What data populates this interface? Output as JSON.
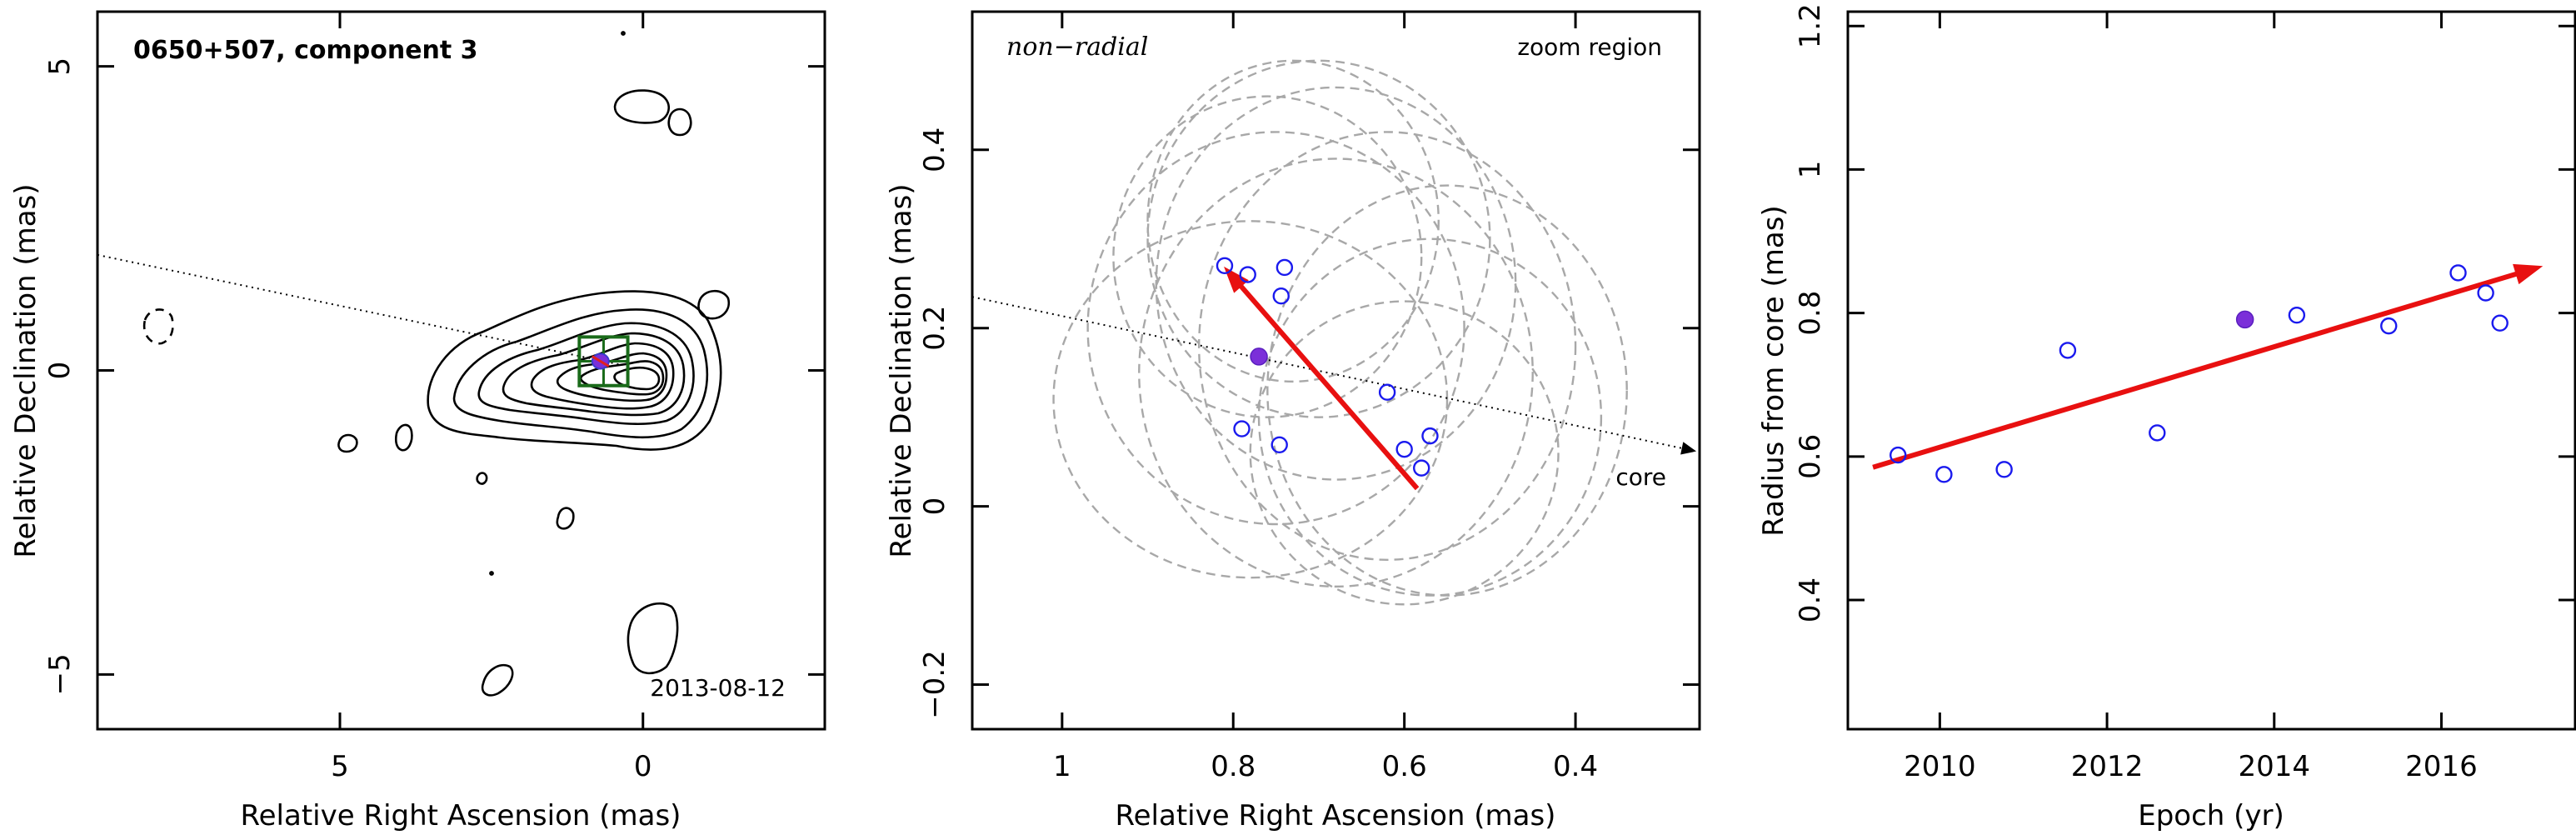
{
  "chart_data": [
    {
      "type": "contour",
      "title": "0650+507, component 3",
      "annotation_date": "2013-08-12",
      "xlabel": "Relative Right Ascension (mas)",
      "ylabel": "Relative Declination (mas)",
      "xlim": [
        9.0,
        -3.0
      ],
      "ylim": [
        -5.9,
        5.9
      ],
      "xticks": [
        5,
        0
      ],
      "yticks": [
        5,
        0,
        -5
      ],
      "xtick_labels": [
        "5",
        "0"
      ],
      "ytick_labels": [
        "5",
        "0",
        "−5"
      ],
      "direction_line": {
        "from": [
          9.0,
          1.9
        ],
        "to": [
          0.4,
          0.1
        ]
      },
      "zoom_box": {
        "x": [
          1.05,
          0.25
        ],
        "y": [
          0.55,
          -0.25
        ]
      },
      "component_marker": {
        "x": 0.7,
        "y": 0.15
      }
    },
    {
      "type": "scatter",
      "title": "non−radial",
      "subtitle": "zoom region",
      "core_label": "core",
      "xlabel": "Relative Right Ascension (mas)",
      "ylabel": "Relative Declination (mas)",
      "xlim": [
        1.105,
        0.255
      ],
      "ylim": [
        -0.25,
        0.555
      ],
      "xticks": [
        1,
        0.8,
        0.6,
        0.4
      ],
      "yticks": [
        0.4,
        0.2,
        0,
        -0.2
      ],
      "xtick_labels": [
        "1",
        "0.8",
        "0.6",
        "0.4"
      ],
      "ytick_labels": [
        "0.4",
        "0.2",
        "0",
        "−0.2"
      ],
      "points": [
        {
          "x": 0.81,
          "y": 0.27
        },
        {
          "x": 0.783,
          "y": 0.26
        },
        {
          "x": 0.74,
          "y": 0.268
        },
        {
          "x": 0.744,
          "y": 0.236
        },
        {
          "x": 0.62,
          "y": 0.128
        },
        {
          "x": 0.79,
          "y": 0.087
        },
        {
          "x": 0.746,
          "y": 0.069
        },
        {
          "x": 0.6,
          "y": 0.064
        },
        {
          "x": 0.57,
          "y": 0.079
        },
        {
          "x": 0.58,
          "y": 0.043
        }
      ],
      "highlight_point": {
        "x": 0.77,
        "y": 0.168
      },
      "ellipses": [
        {
          "cx": 0.73,
          "cy": 0.32,
          "rx": 0.17,
          "ry": 0.18
        },
        {
          "cx": 0.7,
          "cy": 0.3,
          "rx": 0.2,
          "ry": 0.2
        },
        {
          "cx": 0.76,
          "cy": 0.28,
          "rx": 0.18,
          "ry": 0.18
        },
        {
          "cx": 0.68,
          "cy": 0.25,
          "rx": 0.21,
          "ry": 0.22
        },
        {
          "cx": 0.75,
          "cy": 0.2,
          "rx": 0.22,
          "ry": 0.22
        },
        {
          "cx": 0.68,
          "cy": 0.15,
          "rx": 0.23,
          "ry": 0.24
        },
        {
          "cx": 0.62,
          "cy": 0.18,
          "rx": 0.22,
          "ry": 0.24
        },
        {
          "cx": 0.55,
          "cy": 0.13,
          "rx": 0.21,
          "ry": 0.23
        },
        {
          "cx": 0.57,
          "cy": 0.1,
          "rx": 0.2,
          "ry": 0.2
        },
        {
          "cx": 0.78,
          "cy": 0.12,
          "rx": 0.23,
          "ry": 0.2
        },
        {
          "cx": 0.6,
          "cy": 0.06,
          "rx": 0.18,
          "ry": 0.17
        }
      ],
      "trajectory_arrow": {
        "from": [
          0.585,
          0.02
        ],
        "to": [
          0.81,
          0.268
        ]
      },
      "direction_line": {
        "from": [
          1.105,
          0.235
        ],
        "to": [
          0.26,
          0.062
        ]
      }
    },
    {
      "type": "scatter",
      "xlabel": "Epoch (yr)",
      "ylabel": "Radius from core (mas)",
      "xlim": [
        2008.9,
        2017.6
      ],
      "ylim": [
        0.22,
        1.22
      ],
      "xticks": [
        2010,
        2012,
        2014,
        2016
      ],
      "yticks": [
        0.4,
        0.6,
        0.8,
        1.0,
        1.2
      ],
      "xtick_labels": [
        "2010",
        "2012",
        "2014",
        "2016"
      ],
      "ytick_labels": [
        "0.4",
        "0.6",
        "0.8",
        "1",
        "1.2"
      ],
      "points": [
        {
          "x": 2009.5,
          "y": 0.602
        },
        {
          "x": 2010.05,
          "y": 0.575
        },
        {
          "x": 2010.77,
          "y": 0.582
        },
        {
          "x": 2011.53,
          "y": 0.748
        },
        {
          "x": 2012.6,
          "y": 0.633
        },
        {
          "x": 2014.27,
          "y": 0.797
        },
        {
          "x": 2015.37,
          "y": 0.782
        },
        {
          "x": 2016.2,
          "y": 0.856
        },
        {
          "x": 2016.53,
          "y": 0.828
        },
        {
          "x": 2016.7,
          "y": 0.786
        }
      ],
      "highlight_point": {
        "x": 2013.65,
        "y": 0.791
      },
      "trend_arrow": {
        "from": [
          2009.2,
          0.585
        ],
        "to": [
          2017.2,
          0.865
        ]
      }
    }
  ]
}
